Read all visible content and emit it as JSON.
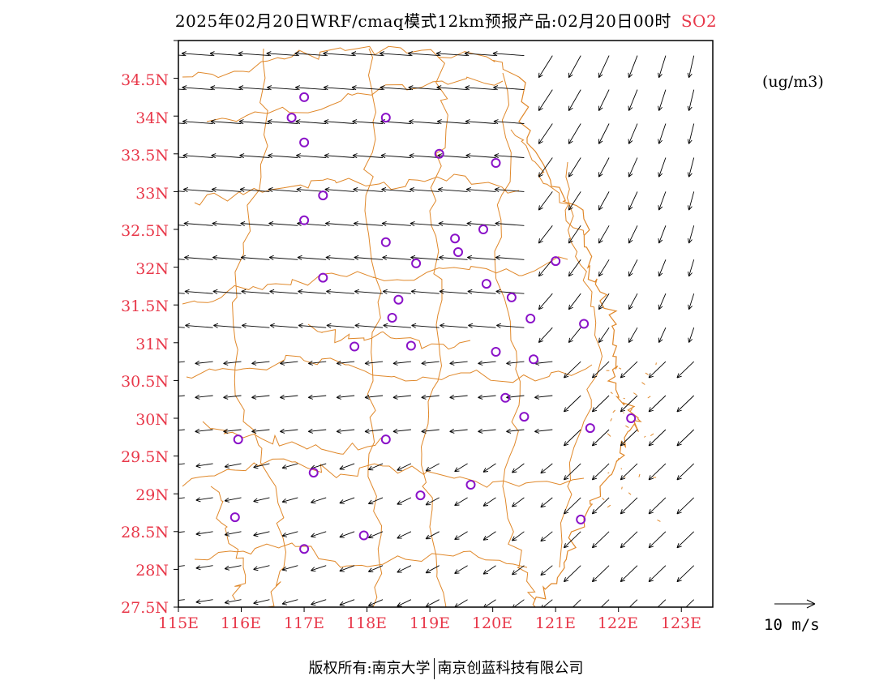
{
  "title": {
    "text": "2025年02月20日WRF/cmaq模式12km预报产品:02月20日00时",
    "species": "SO2"
  },
  "unit_label": "(ug/m3)",
  "lat_labels": [
    "34.5N",
    "34N",
    "33.5N",
    "33N",
    "32.5N",
    "32N",
    "31.5N",
    "31N",
    "30.5N",
    "30N",
    "29.5N",
    "29N",
    "28.5N",
    "28N",
    "27.5N"
  ],
  "lon_labels": [
    "115E",
    "116E",
    "117E",
    "118E",
    "119E",
    "120E",
    "121E",
    "122E",
    "123E"
  ],
  "reference_vector": {
    "label": "10 m/s",
    "speed": 10
  },
  "copyright": {
    "left": "版权所有:南京大学",
    "right": "南京创蓝科技有限公司"
  },
  "colors": {
    "axis_label": "#e8384a",
    "boundary": "#e0882a",
    "station": "#8a12c8",
    "arrow": "#000000"
  },
  "map_data": {
    "lon_range": [
      115,
      123.5
    ],
    "lat_range": [
      27.5,
      35.0
    ],
    "stations": [
      [
        117.0,
        34.25
      ],
      [
        116.8,
        33.98
      ],
      [
        118.3,
        33.98
      ],
      [
        117.0,
        33.65
      ],
      [
        119.15,
        33.5
      ],
      [
        120.05,
        33.38
      ],
      [
        117.3,
        32.95
      ],
      [
        117.0,
        32.62
      ],
      [
        118.3,
        32.33
      ],
      [
        119.4,
        32.38
      ],
      [
        119.85,
        32.5
      ],
      [
        118.78,
        32.05
      ],
      [
        119.45,
        32.2
      ],
      [
        121.0,
        32.08
      ],
      [
        117.3,
        31.86
      ],
      [
        119.9,
        31.78
      ],
      [
        118.5,
        31.57
      ],
      [
        120.3,
        31.6
      ],
      [
        118.4,
        31.33
      ],
      [
        120.6,
        31.32
      ],
      [
        121.45,
        31.25
      ],
      [
        117.8,
        30.95
      ],
      [
        118.7,
        30.96
      ],
      [
        120.05,
        30.88
      ],
      [
        120.65,
        30.78
      ],
      [
        120.2,
        30.27
      ],
      [
        120.5,
        30.02
      ],
      [
        121.55,
        29.87
      ],
      [
        122.2,
        30.0
      ],
      [
        115.95,
        29.72
      ],
      [
        118.3,
        29.72
      ],
      [
        117.15,
        29.28
      ],
      [
        119.65,
        29.12
      ],
      [
        118.85,
        28.98
      ],
      [
        115.9,
        28.69
      ],
      [
        117.95,
        28.45
      ],
      [
        121.4,
        28.66
      ],
      [
        117.0,
        28.27
      ]
    ]
  }
}
